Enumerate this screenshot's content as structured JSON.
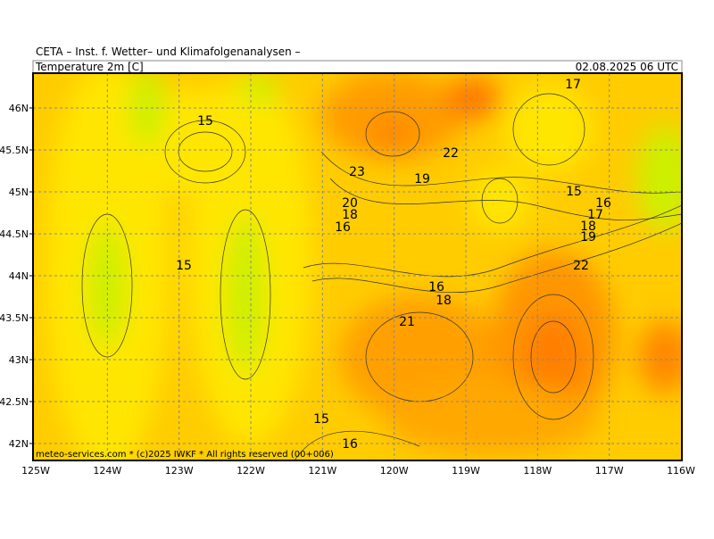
{
  "header": {
    "title": "CETA – Inst. f. Wetter– und Klimafolgenanalysen –",
    "parameter": "Temperature 2m [C]",
    "valid_time": "02.08.2025 06 UTC"
  },
  "map": {
    "lat_labels": [
      "46N",
      "45.5N",
      "45N",
      "44.5N",
      "44N",
      "43.5N",
      "43N",
      "42.5N",
      "42N"
    ],
    "lon_labels": [
      "125W",
      "124W",
      "123W",
      "122W",
      "121W",
      "120W",
      "119W",
      "118W",
      "117W",
      "116W"
    ],
    "contour_labels": [
      15,
      15,
      23,
      22,
      19,
      20,
      18,
      16,
      17,
      15,
      16,
      17,
      18,
      19,
      22,
      16,
      18,
      21,
      15,
      16
    ],
    "footer": "meteo-services.com * (c)2025 IWKF * All rights reserved (00+006)"
  }
}
